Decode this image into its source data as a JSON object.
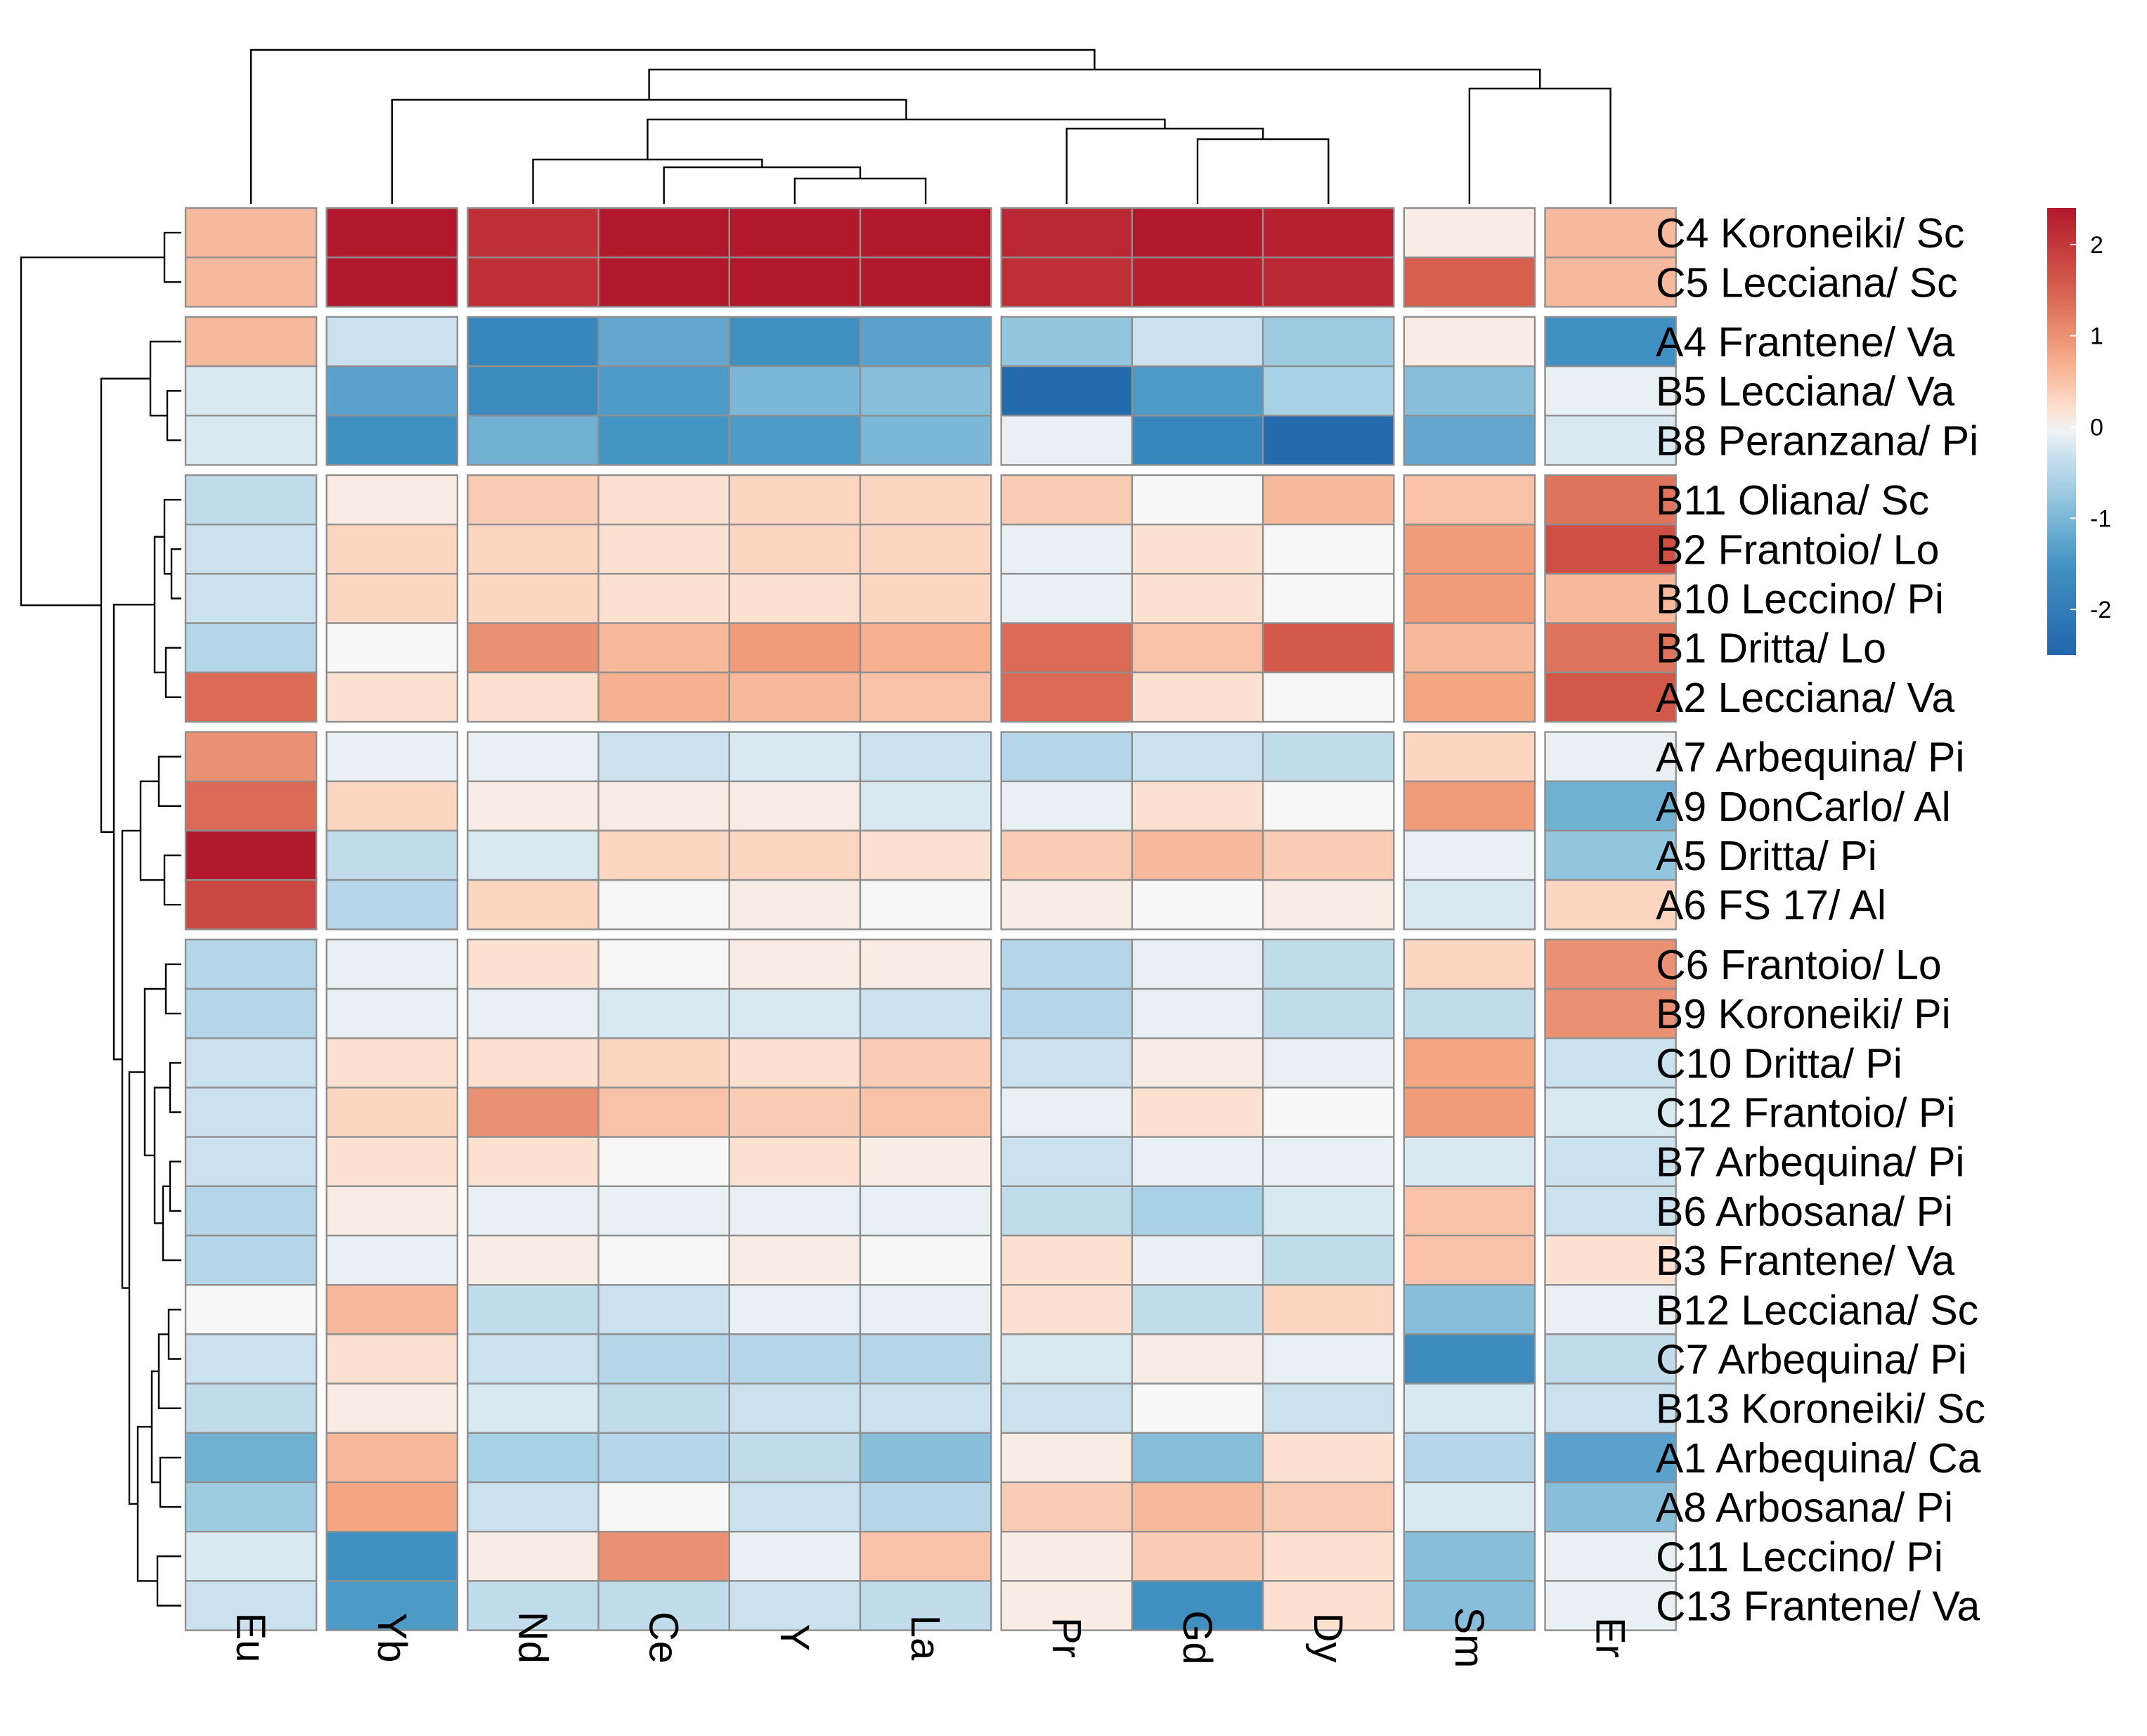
{
  "chart_data": {
    "type": "heatmap",
    "title": "",
    "columns": [
      "Eu",
      "Yb",
      "Nd",
      "Ce",
      "Y",
      "La",
      "Pr",
      "Gd",
      "Dy",
      "Sm",
      "Er"
    ],
    "rows": [
      "C4 Koroneiki/ Sc",
      "C5 Lecciana/ Sc",
      "A4 Frantene/ Va",
      "B5 Lecciana/ Va",
      "B8 Peranzana/ Pi",
      "B11 Oliana/ Sc",
      "B2 Frantoio/ Lo",
      "B10 Leccino/ Pi",
      "B1 Dritta/ Lo",
      "A2 Lecciana/ Va",
      "A7 Arbequina/ Pi",
      "A9 DonCarlo/ Al",
      "A5 Dritta/ Pi",
      "A6 FS 17/ Al",
      "C6 Frantoio/ Lo",
      "B9 Koroneiki/ Pi",
      "C10 Dritta/ Pi",
      "C12 Frantoio/ Pi",
      "B7 Arbequina/ Pi",
      "B6 Arbosana/ Pi",
      "B3 Frantene/ Va",
      "B12 Lecciana/ Sc",
      "C7 Arbequina/ Pi",
      "B13 Koroneiki/ Sc",
      "A1 Arbequina/ Ca",
      "A8 Arbosana/ Pi",
      "C11 Leccino/ Pi",
      "C13 Frantene/ Va"
    ],
    "values": [
      [
        0.6,
        2.4,
        2.1,
        2.4,
        2.4,
        2.4,
        2.2,
        2.4,
        2.3,
        0.1,
        0.6
      ],
      [
        0.6,
        2.4,
        2.1,
        2.4,
        2.4,
        2.4,
        2.1,
        2.3,
        2.2,
        1.5,
        0.6
      ],
      [
        0.6,
        -0.3,
        -1.8,
        -1.2,
        -1.6,
        -1.3,
        -0.8,
        -0.3,
        -0.7,
        0.1,
        -1.6
      ],
      [
        -0.2,
        -1.3,
        -1.7,
        -1.4,
        -1.0,
        -0.9,
        -2.4,
        -1.4,
        -0.6,
        -0.9,
        -0.1
      ],
      [
        -0.2,
        -1.6,
        -1.1,
        -1.5,
        -1.4,
        -1.0,
        -0.1,
        -1.8,
        -2.4,
        -1.2,
        -0.2
      ],
      [
        -0.4,
        0.1,
        0.4,
        0.2,
        0.3,
        0.3,
        0.4,
        0.0,
        0.6,
        0.5,
        1.3
      ],
      [
        -0.3,
        0.3,
        0.3,
        0.2,
        0.3,
        0.3,
        -0.1,
        0.2,
        0.0,
        0.9,
        1.7
      ],
      [
        -0.3,
        0.3,
        0.3,
        0.2,
        0.2,
        0.3,
        -0.1,
        0.2,
        0.0,
        0.9,
        0.6
      ],
      [
        -0.5,
        0.0,
        1.0,
        0.6,
        0.9,
        0.7,
        1.4,
        0.5,
        1.6,
        0.6,
        1.3
      ],
      [
        1.4,
        0.2,
        0.2,
        0.7,
        0.6,
        0.5,
        1.4,
        0.2,
        0.0,
        0.8,
        1.6
      ],
      [
        1.0,
        -0.1,
        -0.1,
        -0.3,
        -0.2,
        -0.3,
        -0.5,
        -0.3,
        -0.4,
        0.3,
        -0.1
      ],
      [
        1.4,
        0.3,
        0.1,
        0.1,
        0.1,
        -0.2,
        -0.1,
        0.2,
        0.0,
        0.9,
        -1.1
      ],
      [
        2.4,
        -0.4,
        -0.2,
        0.3,
        0.3,
        0.2,
        0.4,
        0.6,
        0.4,
        -0.1,
        -0.8
      ],
      [
        1.8,
        -0.5,
        0.3,
        0.0,
        0.1,
        0.0,
        0.1,
        0.0,
        0.1,
        -0.2,
        0.3
      ],
      [
        -0.5,
        -0.1,
        0.2,
        0.0,
        0.1,
        0.1,
        -0.5,
        -0.1,
        -0.4,
        0.3,
        1.0
      ],
      [
        -0.5,
        -0.1,
        -0.1,
        -0.2,
        -0.2,
        -0.3,
        -0.5,
        -0.1,
        -0.4,
        -0.4,
        1.0
      ],
      [
        -0.3,
        0.2,
        0.2,
        0.3,
        0.2,
        0.4,
        -0.3,
        0.1,
        -0.1,
        0.8,
        -0.3
      ],
      [
        -0.3,
        0.3,
        1.0,
        0.5,
        0.4,
        0.5,
        -0.1,
        0.2,
        0.0,
        0.9,
        -0.2
      ],
      [
        -0.3,
        0.2,
        0.2,
        0.0,
        0.2,
        0.1,
        -0.3,
        -0.1,
        -0.1,
        -0.2,
        -0.3
      ],
      [
        -0.5,
        0.1,
        -0.1,
        -0.1,
        -0.1,
        -0.1,
        -0.4,
        -0.6,
        -0.2,
        0.5,
        -0.3
      ],
      [
        -0.5,
        -0.1,
        0.1,
        0.0,
        0.1,
        0.0,
        0.2,
        -0.1,
        -0.4,
        0.5,
        0.2
      ],
      [
        0.0,
        0.6,
        -0.4,
        -0.3,
        -0.1,
        -0.1,
        0.2,
        -0.4,
        0.3,
        -0.9,
        -0.1
      ],
      [
        -0.3,
        0.2,
        -0.3,
        -0.5,
        -0.5,
        -0.5,
        -0.2,
        0.1,
        -0.1,
        -1.7,
        -0.4
      ],
      [
        -0.4,
        0.1,
        -0.2,
        -0.4,
        -0.3,
        -0.3,
        -0.3,
        0.0,
        -0.3,
        -0.2,
        -0.3
      ],
      [
        -1.1,
        0.6,
        -0.6,
        -0.5,
        -0.4,
        -0.9,
        0.1,
        -0.9,
        0.2,
        -0.5,
        -1.3
      ],
      [
        -0.7,
        0.8,
        -0.3,
        0.0,
        -0.3,
        -0.5,
        0.4,
        0.6,
        0.4,
        -0.2,
        -0.9
      ],
      [
        -0.2,
        -1.6,
        0.1,
        1.0,
        -0.1,
        0.5,
        0.1,
        0.4,
        0.2,
        -0.9,
        -0.1
      ],
      [
        -0.3,
        -1.4,
        -0.4,
        -0.4,
        -0.3,
        -0.4,
        0.1,
        -1.6,
        0.2,
        -0.9,
        -0.1
      ]
    ],
    "row_split_after": [
      2,
      5,
      10,
      14
    ],
    "col_split_after": [
      1,
      2,
      6,
      9,
      10
    ],
    "color_scale": {
      "low": "#2166ac",
      "mid": "#f7f7f7",
      "high": "#b2182b",
      "range": [
        -2.5,
        2.4
      ]
    },
    "legend": {
      "position": "right",
      "ticks": [
        2,
        1,
        0,
        -1,
        -2
      ],
      "labels": [
        "2",
        "1",
        "0",
        "-1",
        "-2"
      ]
    }
  }
}
